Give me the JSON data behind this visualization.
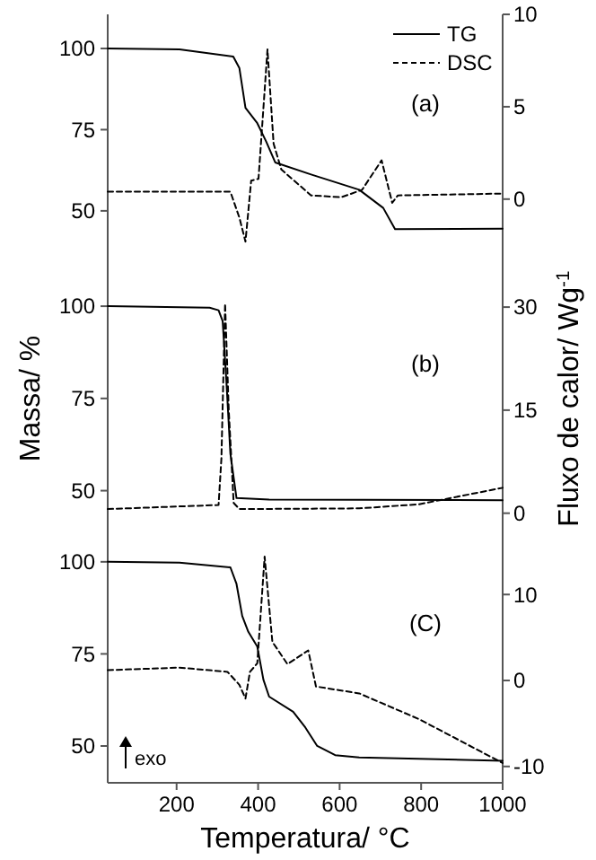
{
  "chart_data": [
    {
      "type": "line",
      "xlim": [
        31,
        1000
      ],
      "ylim": [
        32,
        110.5
      ],
      "yticks": [
        50,
        75,
        100
      ],
      "y2lim": [
        -3.8,
        10
      ],
      "y2ticks": [
        0,
        5,
        10
      ],
      "tick_labels": "y",
      "legend": "top right",
      "annotations": [
        "(a)"
      ],
      "series": [
        {
          "name": "TG",
          "color": "#000000",
          "line_style": "solid",
          "x": [
            31,
            207,
            339,
            354,
            369,
            398,
            420,
            442,
            530,
            648,
            707,
            736,
            1000
          ],
          "values": [
            100,
            99.7,
            97.5,
            94,
            81.7,
            77,
            71.3,
            64.9,
            61.2,
            56.5,
            50.9,
            44.4,
            44.5
          ]
        },
        {
          "name": "DSC",
          "color": "#000000",
          "line_style": "dashed",
          "axis": "y2",
          "x": [
            31,
            332,
            354,
            369,
            383,
            401,
            423,
            438,
            457,
            530,
            604,
            655,
            703,
            729,
            743,
            1000
          ],
          "values": [
            0.4,
            0.4,
            -1,
            -2.3,
            1.0,
            1.1,
            8.1,
            3,
            1.6,
            0.2,
            0.1,
            0.5,
            2.1,
            -0.2,
            0.2,
            0.3
          ]
        }
      ]
    },
    {
      "type": "line",
      "xlim": [
        31,
        1000
      ],
      "ylim": [
        37,
        110
      ],
      "yticks": [
        50,
        75,
        100
      ],
      "y2lim": [
        -3.7,
        35.5
      ],
      "y2ticks": [
        0,
        15,
        30
      ],
      "tick_labels": "y",
      "legend": false,
      "ylabel": "Massa/ %",
      "y2label": "Fluxo  de calor/ Wg$^{-1}$",
      "annotations": [
        "(b)"
      ],
      "series": [
        {
          "color": "#000000",
          "line_style": "solid",
          "x": [
            31,
            281,
            303,
            313,
            322,
            332,
            347,
            427,
            1000
          ],
          "values": [
            100,
            99.6,
            98.9,
            96,
            80,
            60,
            48,
            47.6,
            47.4
          ]
        },
        {
          "color": "#000000",
          "line_style": "dashed",
          "axis": "y2",
          "x": [
            31,
            303,
            310,
            319,
            328,
            340,
            354,
            648,
            795,
            1000
          ],
          "values": [
            0.6,
            1.2,
            8,
            30.5,
            15,
            1.5,
            0.6,
            0.7,
            1.3,
            3.7
          ]
        }
      ]
    },
    {
      "type": "line",
      "xlim": [
        31,
        1000
      ],
      "xticks": [
        200,
        400,
        600,
        800,
        1000
      ],
      "xlabel": "Temperatura/ °C",
      "ylim": [
        40,
        106.3
      ],
      "yticks": [
        50,
        75,
        100
      ],
      "y2lim": [
        -11.9,
        16.5
      ],
      "y2ticks": [
        -10,
        0,
        10
      ],
      "legend": false,
      "annotations": [
        "(C)",
        "exo"
      ],
      "series": [
        {
          "color": "#000000",
          "line_style": "solid",
          "x": [
            31,
            207,
            332,
            347,
            361,
            376,
            398,
            413,
            427,
            486,
            516,
            545,
            589,
            648,
            1000
          ],
          "values": [
            100,
            99.8,
            98.5,
            94,
            85.3,
            81,
            77,
            68,
            63.4,
            59.3,
            55,
            50,
            47.5,
            46.9,
            46
          ]
        },
        {
          "color": "#000000",
          "line_style": "dashed",
          "axis": "y2",
          "x": [
            31,
            207,
            325,
            354,
            369,
            380,
            398,
            416,
            435,
            472,
            523,
            542,
            648,
            795,
            1000
          ],
          "values": [
            1.2,
            1.5,
            1.0,
            -0.5,
            -2.1,
            1.0,
            2.0,
            14.4,
            4.5,
            1.9,
            3.5,
            -0.7,
            -1.5,
            -4.5,
            -9.6
          ]
        }
      ]
    }
  ]
}
